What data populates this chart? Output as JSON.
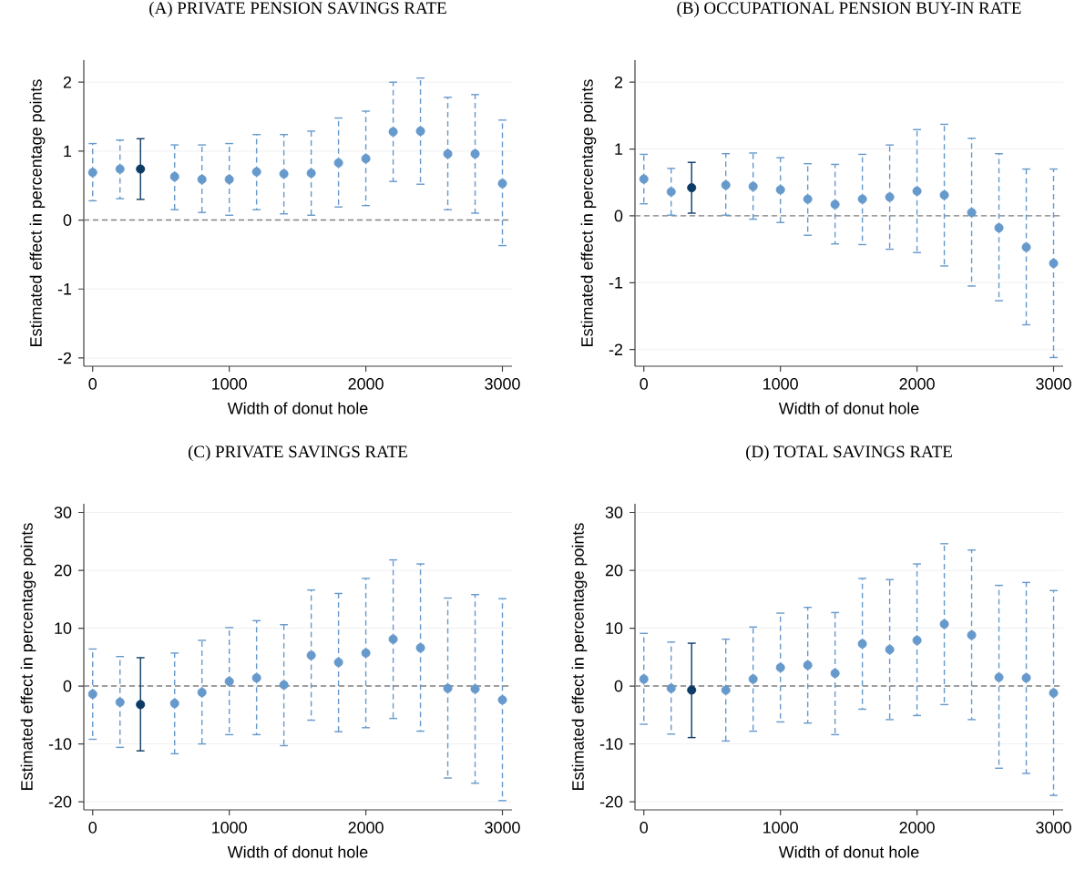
{
  "chart_data": [
    {
      "type": "scatter",
      "title": "(A) PRIVATE PENSION SAVINGS RATE",
      "xlabel": "Width of donut hole",
      "ylabel": "Estimated effect in percentage points",
      "xlim": [
        -65,
        3070
      ],
      "ylim": [
        -2.12,
        2.32
      ],
      "xticks": [
        0,
        1000,
        2000,
        3000
      ],
      "yticks": [
        -2,
        -1,
        0,
        1,
        2
      ],
      "grid": "y",
      "marker": "circle",
      "ref_lines": [
        {
          "axis": "y",
          "value": 0,
          "color": "#808080",
          "line_style": "dashed"
        }
      ],
      "series": [
        {
          "color": "#6699cc",
          "line_style": "dashed",
          "x": [
            0,
            200,
            600,
            800,
            1000,
            1200,
            1400,
            1600,
            1800,
            2000,
            2200,
            2400,
            2600,
            2800,
            3000
          ],
          "values": [
            0.69,
            0.74,
            0.63,
            0.59,
            0.59,
            0.7,
            0.67,
            0.68,
            0.83,
            0.89,
            1.28,
            1.29,
            0.96,
            0.96,
            0.53
          ],
          "errors": [
            [
              0.28,
              1.11
            ],
            [
              0.31,
              1.16
            ],
            [
              0.15,
              1.09
            ],
            [
              0.11,
              1.09
            ],
            [
              0.07,
              1.11
            ],
            [
              0.15,
              1.24
            ],
            [
              0.09,
              1.24
            ],
            [
              0.07,
              1.29
            ],
            [
              0.19,
              1.48
            ],
            [
              0.21,
              1.58
            ],
            [
              0.56,
              2.0
            ],
            [
              0.52,
              2.06
            ],
            [
              0.15,
              1.78
            ],
            [
              0.1,
              1.82
            ],
            [
              -0.37,
              1.45
            ]
          ]
        },
        {
          "color": "#0b3a66",
          "line_style": "solid",
          "x": [
            350
          ],
          "values": [
            0.74
          ],
          "errors": [
            [
              0.3,
              1.18
            ]
          ]
        }
      ]
    },
    {
      "type": "scatter",
      "title": "(B) OCCUPATIONAL PENSION BUY-IN RATE",
      "xlabel": "Width of donut hole",
      "ylabel": "Estimated effect in percentage points",
      "xlim": [
        -65,
        3070
      ],
      "ylim": [
        -2.25,
        2.33
      ],
      "xticks": [
        0,
        1000,
        2000,
        3000
      ],
      "yticks": [
        -2,
        -1,
        0,
        1,
        2
      ],
      "grid": "y",
      "marker": "circle",
      "ref_lines": [
        {
          "axis": "y",
          "value": 0,
          "color": "#808080",
          "line_style": "dashed"
        }
      ],
      "series": [
        {
          "color": "#6699cc",
          "line_style": "dashed",
          "x": [
            0,
            200,
            600,
            800,
            1000,
            1200,
            1400,
            1600,
            1800,
            2000,
            2200,
            2400,
            2600,
            2800,
            3000
          ],
          "values": [
            0.55,
            0.36,
            0.46,
            0.44,
            0.39,
            0.25,
            0.17,
            0.25,
            0.28,
            0.37,
            0.31,
            0.05,
            -0.18,
            -0.47,
            -0.71
          ],
          "errors": [
            [
              0.18,
              0.92
            ],
            [
              0.01,
              0.71
            ],
            [
              0.01,
              0.93
            ],
            [
              -0.05,
              0.94
            ],
            [
              -0.1,
              0.87
            ],
            [
              -0.29,
              0.78
            ],
            [
              -0.42,
              0.77
            ],
            [
              -0.43,
              0.92
            ],
            [
              -0.5,
              1.06
            ],
            [
              -0.55,
              1.29
            ],
            [
              -0.75,
              1.37
            ],
            [
              -1.05,
              1.16
            ],
            [
              -1.27,
              0.93
            ],
            [
              -1.63,
              0.7
            ],
            [
              -2.12,
              0.7
            ]
          ]
        },
        {
          "color": "#0b3a66",
          "line_style": "solid",
          "x": [
            350
          ],
          "values": [
            0.42
          ],
          "errors": [
            [
              0.04,
              0.8
            ]
          ]
        }
      ]
    },
    {
      "type": "scatter",
      "title": "(C) PRIVATE SAVINGS RATE",
      "xlabel": "Width of donut hole",
      "ylabel": "Estimated effect in percentage points",
      "xlim": [
        -65,
        3070
      ],
      "ylim": [
        -21.4,
        31.5
      ],
      "xticks": [
        0,
        1000,
        2000,
        3000
      ],
      "yticks": [
        -20,
        -10,
        0,
        10,
        20,
        30
      ],
      "grid": "y",
      "marker": "circle",
      "ref_lines": [
        {
          "axis": "y",
          "value": 0,
          "color": "#808080",
          "line_style": "dashed"
        }
      ],
      "series": [
        {
          "color": "#6699cc",
          "line_style": "dashed",
          "x": [
            0,
            200,
            600,
            800,
            1000,
            1200,
            1400,
            1600,
            1800,
            2000,
            2200,
            2400,
            2600,
            2800,
            3000
          ],
          "values": [
            -1.4,
            -2.8,
            -3.0,
            -1.1,
            0.8,
            1.4,
            0.2,
            5.3,
            4.1,
            5.7,
            8.1,
            6.6,
            -0.4,
            -0.5,
            -2.4
          ],
          "errors": [
            [
              -9.2,
              6.4
            ],
            [
              -10.6,
              5.1
            ],
            [
              -11.7,
              5.7
            ],
            [
              -10.0,
              7.9
            ],
            [
              -8.4,
              10.1
            ],
            [
              -8.4,
              11.3
            ],
            [
              -10.3,
              10.6
            ],
            [
              -5.9,
              16.6
            ],
            [
              -7.9,
              16.0
            ],
            [
              -7.2,
              18.6
            ],
            [
              -5.6,
              21.8
            ],
            [
              -7.8,
              21.1
            ],
            [
              -15.9,
              15.2
            ],
            [
              -16.8,
              15.8
            ],
            [
              -19.8,
              15.1
            ]
          ]
        },
        {
          "color": "#0b3a66",
          "line_style": "solid",
          "x": [
            350
          ],
          "values": [
            -3.2
          ],
          "errors": [
            [
              -11.2,
              4.9
            ]
          ]
        }
      ]
    },
    {
      "type": "scatter",
      "title": "(D) TOTAL SAVINGS RATE",
      "xlabel": "Width of donut hole",
      "ylabel": "Estimated effect in percentage points",
      "xlim": [
        -65,
        3070
      ],
      "ylim": [
        -21.4,
        31.5
      ],
      "xticks": [
        0,
        1000,
        2000,
        3000
      ],
      "yticks": [
        -20,
        -10,
        0,
        10,
        20,
        30
      ],
      "grid": "y",
      "marker": "circle",
      "ref_lines": [
        {
          "axis": "y",
          "value": 0,
          "color": "#808080",
          "line_style": "dashed"
        }
      ],
      "series": [
        {
          "color": "#6699cc",
          "line_style": "dashed",
          "x": [
            0,
            200,
            600,
            800,
            1000,
            1200,
            1400,
            1600,
            1800,
            2000,
            2200,
            2400,
            2600,
            2800,
            3000
          ],
          "values": [
            1.2,
            -0.4,
            -0.7,
            1.2,
            3.2,
            3.6,
            2.2,
            7.3,
            6.3,
            7.9,
            10.7,
            8.8,
            1.5,
            1.4,
            -1.2
          ],
          "errors": [
            [
              -6.6,
              9.1
            ],
            [
              -8.3,
              7.6
            ],
            [
              -9.5,
              8.1
            ],
            [
              -7.8,
              10.2
            ],
            [
              -6.2,
              12.6
            ],
            [
              -6.4,
              13.6
            ],
            [
              -8.4,
              12.7
            ],
            [
              -4.0,
              18.6
            ],
            [
              -5.8,
              18.4
            ],
            [
              -5.1,
              21.1
            ],
            [
              -3.2,
              24.6
            ],
            [
              -5.8,
              23.5
            ],
            [
              -14.2,
              17.4
            ],
            [
              -15.1,
              17.9
            ],
            [
              -18.9,
              16.5
            ]
          ]
        },
        {
          "color": "#0b3a66",
          "line_style": "solid",
          "x": [
            350
          ],
          "values": [
            -0.7
          ],
          "errors": [
            [
              -8.9,
              7.4
            ]
          ]
        }
      ]
    }
  ]
}
